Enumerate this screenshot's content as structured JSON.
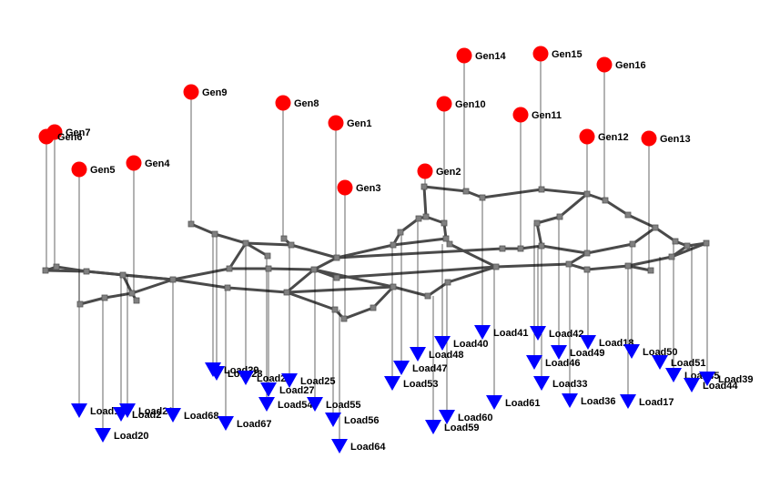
{
  "title": "Power grid network graph",
  "colors": {
    "generator": "#ff0000",
    "load": "#0000ff",
    "edge": "#4a4a4a",
    "junction": "#808080",
    "label": "#000000"
  },
  "generators": [
    {
      "id": "gen7",
      "label": "Gen7"
    },
    {
      "id": "gen6",
      "label": "Gen6"
    },
    {
      "id": "gen5",
      "label": "Gen5"
    },
    {
      "id": "gen4",
      "label": "Gen4"
    },
    {
      "id": "gen9",
      "label": "Gen9"
    },
    {
      "id": "gen8",
      "label": "Gen8"
    },
    {
      "id": "gen1",
      "label": "Gen1"
    },
    {
      "id": "gen3",
      "label": "Gen3"
    },
    {
      "id": "gen2",
      "label": "Gen2"
    },
    {
      "id": "gen10",
      "label": "Gen10"
    },
    {
      "id": "gen14",
      "label": "Gen14"
    },
    {
      "id": "gen15",
      "label": "Gen15"
    },
    {
      "id": "gen11",
      "label": "Gen11"
    },
    {
      "id": "gen12",
      "label": "Gen12"
    },
    {
      "id": "gen16",
      "label": "Gen16"
    },
    {
      "id": "gen13",
      "label": "Gen13"
    }
  ],
  "loads": [
    {
      "id": "load1",
      "label": "Load1"
    },
    {
      "id": "load2",
      "label": "Load2"
    },
    {
      "id": "load21",
      "label": "Load21"
    },
    {
      "id": "load20",
      "label": "Load20"
    },
    {
      "id": "load68",
      "label": "Load68"
    },
    {
      "id": "load67",
      "label": "Load67"
    },
    {
      "id": "load29",
      "label": "Load29"
    },
    {
      "id": "load28",
      "label": "Load28"
    },
    {
      "id": "load26",
      "label": "Load26"
    },
    {
      "id": "load25",
      "label": "Load25"
    },
    {
      "id": "load27",
      "label": "Load27"
    },
    {
      "id": "load54",
      "label": "Load54"
    },
    {
      "id": "load55",
      "label": "Load55"
    },
    {
      "id": "load56",
      "label": "Load56"
    },
    {
      "id": "load64",
      "label": "Load64"
    },
    {
      "id": "load53",
      "label": "Load53"
    },
    {
      "id": "load47",
      "label": "Load47"
    },
    {
      "id": "load48",
      "label": "Load48"
    },
    {
      "id": "load40",
      "label": "Load40"
    },
    {
      "id": "load60",
      "label": "Load60"
    },
    {
      "id": "load59",
      "label": "Load59"
    },
    {
      "id": "load41",
      "label": "Load41"
    },
    {
      "id": "load61",
      "label": "Load61"
    },
    {
      "id": "load42",
      "label": "Load42"
    },
    {
      "id": "load46",
      "label": "Load46"
    },
    {
      "id": "load49",
      "label": "Load49"
    },
    {
      "id": "load33",
      "label": "Load33"
    },
    {
      "id": "load18",
      "label": "Load18"
    },
    {
      "id": "load36",
      "label": "Load36"
    },
    {
      "id": "load50",
      "label": "Load50"
    },
    {
      "id": "load17",
      "label": "Load17"
    },
    {
      "id": "load51",
      "label": "Load51"
    },
    {
      "id": "load45",
      "label": "Load45"
    },
    {
      "id": "load44",
      "label": "Load44"
    },
    {
      "id": "load39",
      "label": "Load39"
    }
  ]
}
